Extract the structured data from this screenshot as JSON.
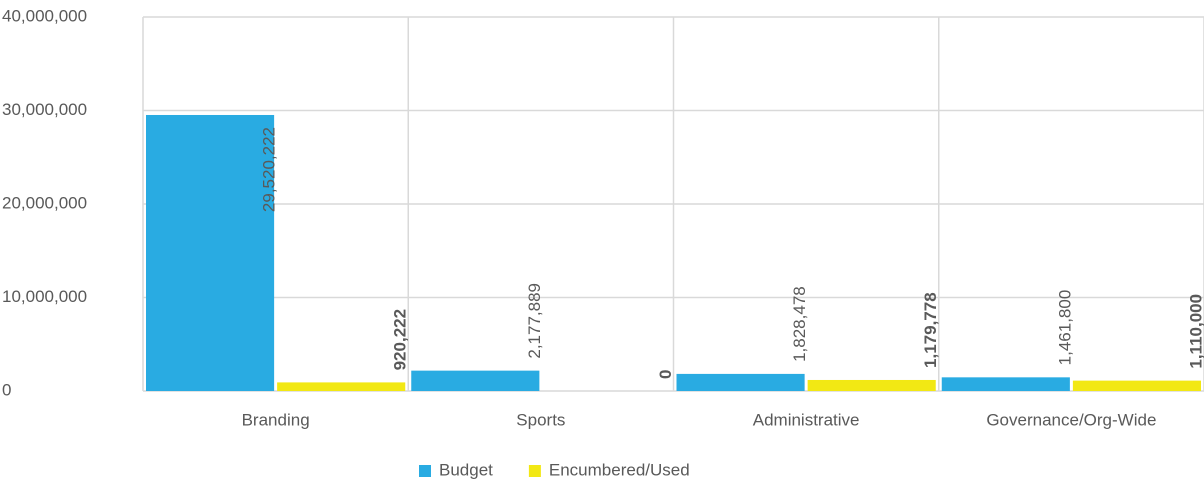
{
  "chart_data": {
    "type": "bar",
    "categories": [
      "Branding",
      "Sports",
      "Administrative",
      "Governance/Org-Wide"
    ],
    "series": [
      {
        "name": "Budget",
        "color": "#29abe2",
        "values": [
          29520222,
          2177889,
          1828478,
          1461800
        ],
        "value_labels": [
          "29,520,222",
          "2,177,889",
          "1,828,478",
          "1,461,800"
        ]
      },
      {
        "name": "Encumbered/Used",
        "color": "#f2e814",
        "values": [
          920222,
          0,
          1179778,
          1110000
        ],
        "value_labels": [
          "920,222",
          "0",
          "1,179,778",
          "1,110,000"
        ]
      }
    ],
    "ylim": [
      0,
      40000000
    ],
    "yticks": [
      0,
      {
        "value": 10000000,
        "label": "10,000,000"
      },
      {
        "value": 20000000,
        "label": "20,000,000"
      },
      {
        "value": 30000000,
        "label": "30,000,000"
      },
      {
        "value": 40000000,
        "label": "40,000,000"
      }
    ],
    "grid": true,
    "legend": "bottom"
  }
}
